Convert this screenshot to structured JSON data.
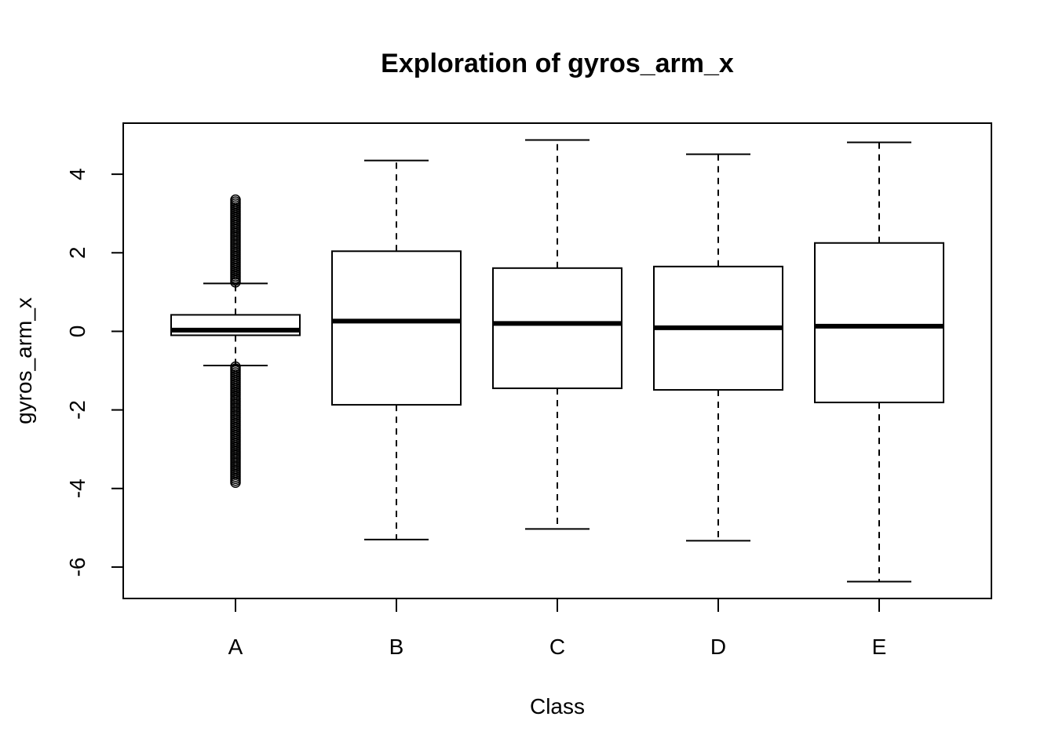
{
  "chart_data": {
    "type": "boxplot",
    "title": "Exploration of  gyros_arm_x",
    "xlabel": "Class",
    "ylabel": "gyros_arm_x",
    "categories": [
      "A",
      "B",
      "C",
      "D",
      "E"
    ],
    "ylim": [
      -6.8,
      5.3
    ],
    "yticks": [
      -6,
      -4,
      -2,
      0,
      2,
      4
    ],
    "boxes": [
      {
        "category": "A",
        "whisker_low": -0.87,
        "q1": -0.1,
        "median": 0.03,
        "q3": 0.42,
        "whisker_high": 1.22,
        "outliers_low": [
          -0.9,
          -1.2,
          -1.5,
          -1.8,
          -2.1,
          -2.4,
          -2.7,
          -3.0,
          -3.3,
          -3.6,
          -3.75,
          -3.85
        ],
        "outliers_high": [
          1.25,
          1.5,
          1.8,
          2.1,
          2.4,
          2.7,
          3.0,
          3.2,
          3.35
        ]
      },
      {
        "category": "B",
        "whisker_low": -5.3,
        "q1": -1.87,
        "median": 0.26,
        "q3": 2.04,
        "whisker_high": 4.35,
        "outliers_low": [],
        "outliers_high": []
      },
      {
        "category": "C",
        "whisker_low": -5.03,
        "q1": -1.45,
        "median": 0.2,
        "q3": 1.61,
        "whisker_high": 4.87,
        "outliers_low": [],
        "outliers_high": []
      },
      {
        "category": "D",
        "whisker_low": -5.33,
        "q1": -1.49,
        "median": 0.09,
        "q3": 1.65,
        "whisker_high": 4.51,
        "outliers_low": [],
        "outliers_high": []
      },
      {
        "category": "E",
        "whisker_low": -6.37,
        "q1": -1.81,
        "median": 0.13,
        "q3": 2.25,
        "whisker_high": 4.81,
        "outliers_low": [],
        "outliers_high": []
      }
    ]
  }
}
